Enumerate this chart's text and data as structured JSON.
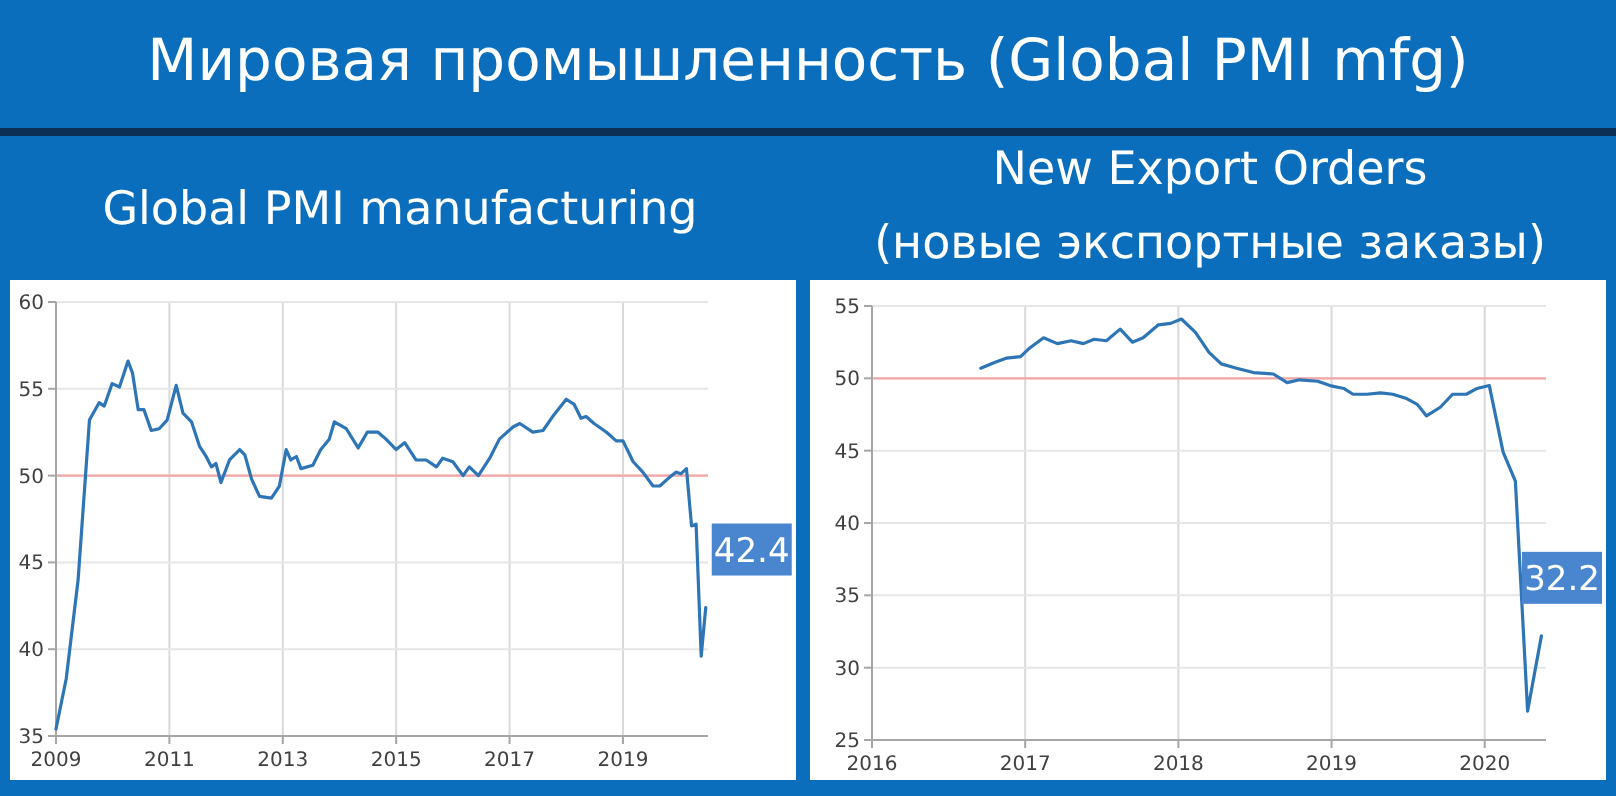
{
  "chart_data": [
    {
      "type": "line",
      "title": "Global PMI manufacturing",
      "annotations": [
        "Мировая промышленность (Global PMI mfg)",
        {
          "text": "42.4",
          "x": 2020.46,
          "y": 42.4
        }
      ],
      "xlim": [
        2009,
        2020.5
      ],
      "xticks": [
        2009,
        2011,
        2013,
        2015,
        2017,
        2019
      ],
      "ylim": [
        35,
        60
      ],
      "yticks": [
        35,
        40,
        45,
        50,
        55,
        60
      ],
      "grid": true,
      "ref_lines": [
        {
          "axis": "y",
          "value": 50,
          "color": "#f4a6a6"
        }
      ],
      "series": [
        {
          "color": "#2e75b6",
          "x": [
            2009.0,
            2009.18,
            2009.39,
            2009.59,
            2009.76,
            2009.85,
            2009.99,
            2010.12,
            2010.27,
            2010.35,
            2010.45,
            2010.55,
            2010.68,
            2010.82,
            2010.96,
            2011.12,
            2011.24,
            2011.39,
            2011.53,
            2011.65,
            2011.74,
            2011.82,
            2011.91,
            2012.06,
            2012.24,
            2012.33,
            2012.45,
            2012.59,
            2012.8,
            2012.94,
            2013.06,
            2013.14,
            2013.24,
            2013.32,
            2013.53,
            2013.67,
            2013.82,
            2013.91,
            2014.12,
            2014.33,
            2014.49,
            2014.68,
            2014.82,
            2015.0,
            2015.15,
            2015.35,
            2015.53,
            2015.71,
            2015.82,
            2016.0,
            2016.18,
            2016.29,
            2016.45,
            2016.65,
            2016.82,
            2017.06,
            2017.18,
            2017.41,
            2017.59,
            2017.76,
            2018.0,
            2018.14,
            2018.26,
            2018.35,
            2018.49,
            2018.71,
            2018.88,
            2019.0,
            2019.18,
            2019.35,
            2019.53,
            2019.65,
            2019.82,
            2019.94,
            2020.02,
            2020.12,
            2020.21,
            2020.29,
            2020.38,
            2020.46
          ],
          "values": [
            35.4,
            38.3,
            44,
            53.2,
            54.2,
            54.0,
            55.3,
            55.1,
            56.6,
            55.9,
            53.8,
            53.8,
            52.6,
            52.7,
            53.2,
            55.2,
            53.6,
            53.1,
            51.7,
            51.1,
            50.5,
            50.7,
            49.6,
            50.9,
            51.5,
            51.2,
            49.8,
            48.8,
            48.7,
            49.4,
            51.5,
            50.9,
            51.1,
            50.4,
            50.6,
            51.5,
            52.1,
            53.1,
            52.7,
            51.6,
            52.5,
            52.5,
            52.1,
            51.5,
            51.9,
            50.9,
            50.9,
            50.5,
            51.0,
            50.8,
            50.0,
            50.5,
            50.0,
            51.0,
            52.1,
            52.8,
            53.0,
            52.5,
            52.6,
            53.4,
            54.4,
            54.1,
            53.3,
            53.4,
            53.0,
            52.5,
            52.0,
            52.0,
            50.8,
            50.2,
            49.4,
            49.4,
            49.9,
            50.2,
            50.1,
            50.4,
            47.1,
            47.2,
            39.6,
            42.4
          ]
        }
      ]
    },
    {
      "type": "line",
      "title": "New Export Orders",
      "subtitle": "(новые экспортные заказы)",
      "annotations": [
        {
          "text": "32.2",
          "x": 2020.37,
          "y": 32.2
        }
      ],
      "xlim": [
        2016,
        2020.4
      ],
      "xticks": [
        2016,
        2017,
        2018,
        2019,
        2020
      ],
      "ylim": [
        25,
        55
      ],
      "yticks": [
        25,
        30,
        35,
        40,
        45,
        50,
        55
      ],
      "grid": true,
      "ref_lines": [
        {
          "axis": "y",
          "value": 50,
          "color": "#f4a6a6"
        }
      ],
      "series": [
        {
          "color": "#2e75b6",
          "x": [
            2016.71,
            2016.8,
            2016.88,
            2016.97,
            2017.03,
            2017.12,
            2017.21,
            2017.3,
            2017.38,
            2017.45,
            2017.53,
            2017.62,
            2017.7,
            2017.77,
            2017.87,
            2017.95,
            2018.02,
            2018.11,
            2018.2,
            2018.28,
            2018.38,
            2018.49,
            2018.62,
            2018.71,
            2018.79,
            2018.91,
            2018.99,
            2019.08,
            2019.14,
            2019.23,
            2019.32,
            2019.4,
            2019.49,
            2019.56,
            2019.62,
            2019.71,
            2019.79,
            2019.88,
            2019.95,
            2020.03,
            2020.12,
            2020.2,
            2020.28,
            2020.37
          ],
          "values": [
            50.7,
            51.1,
            51.4,
            51.5,
            52.1,
            52.8,
            52.4,
            52.6,
            52.4,
            52.7,
            52.6,
            53.4,
            52.5,
            52.8,
            53.7,
            53.8,
            54.1,
            53.2,
            51.8,
            51.0,
            50.7,
            50.4,
            50.3,
            49.7,
            49.9,
            49.8,
            49.5,
            49.3,
            48.9,
            48.9,
            49.0,
            48.9,
            48.6,
            48.2,
            47.4,
            48.0,
            48.9,
            48.9,
            49.3,
            49.5,
            44.9,
            42.9,
            27.0,
            32.2
          ]
        }
      ]
    }
  ]
}
